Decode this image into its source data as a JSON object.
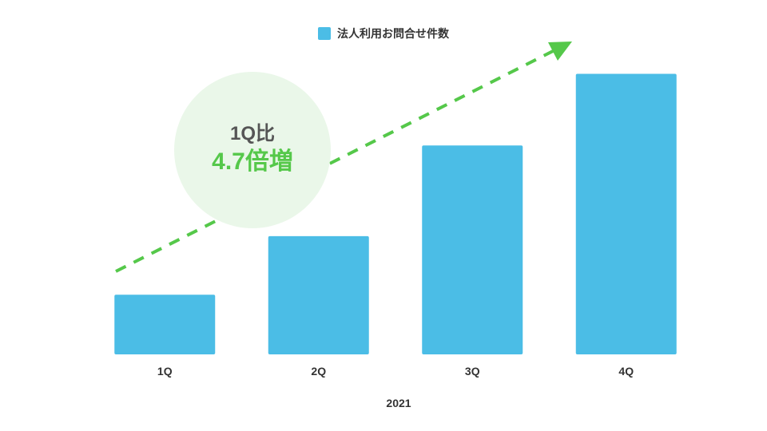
{
  "chart_data": {
    "type": "bar",
    "categories": [
      "1Q",
      "2Q",
      "3Q",
      "4Q"
    ],
    "series": [
      {
        "name": "法人利用お問合せ件数",
        "values": [
          1.0,
          1.98,
          3.5,
          4.7
        ]
      }
    ],
    "xlabel": "2021",
    "ylabel": "",
    "ylim": [
      0,
      5
    ],
    "grid": false,
    "legend": "top-center",
    "annotation": {
      "line1": "1Q比",
      "line2": "4.7倍増"
    },
    "trend_arrow": "dashed-up-right"
  },
  "colors": {
    "bar": "#4BBDE6",
    "accent_green": "#55C84A",
    "bubble_fill": "#EAF7E9",
    "text": "#333333"
  }
}
